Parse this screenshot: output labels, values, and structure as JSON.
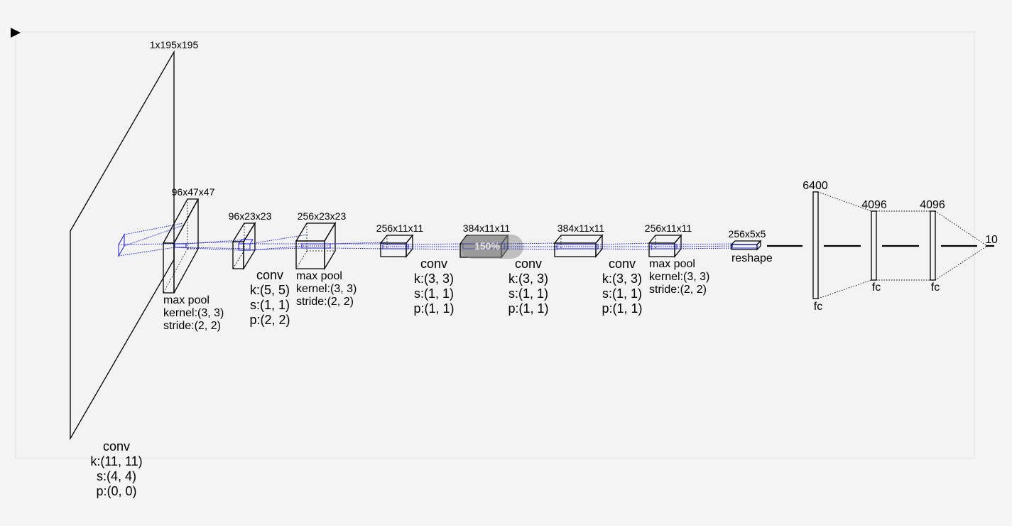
{
  "colors": {
    "background": "#f5f5f5",
    "panel": "#f3f3f3",
    "panel_border": "#e0e0e0",
    "receptive_field": "#1a1ad0",
    "highlight": "#a9a9a9"
  },
  "icons": {
    "play": "play-triangle-icon"
  },
  "input": {
    "shape": "1x195x195"
  },
  "layers": {
    "conv1": {
      "title": "conv",
      "kernel": "k:(11, 11)",
      "stride": "s:(4, 4)",
      "padding": "p:(0, 0)"
    },
    "out1": {
      "shape": "96x47x47"
    },
    "pool1": {
      "title": "max pool",
      "kernel": "kernel:(3, 3)",
      "stride": "stride:(2, 2)"
    },
    "out2": {
      "shape": "96x23x23"
    },
    "conv2": {
      "title": "conv",
      "kernel": "k:(5, 5)",
      "stride": "s:(1, 1)",
      "padding": "p:(2, 2)"
    },
    "out3": {
      "shape": "256x23x23"
    },
    "pool2": {
      "title": "max pool",
      "kernel": "kernel:(3, 3)",
      "stride": "stride:(2, 2)"
    },
    "out4": {
      "shape": "256x11x11"
    },
    "conv3": {
      "title": "conv",
      "kernel": "k:(3, 3)",
      "stride": "s:(1, 1)",
      "padding": "p:(1, 1)"
    },
    "out5": {
      "shape": "384x11x11",
      "overlay": "150%"
    },
    "conv4": {
      "title": "conv",
      "kernel": "k:(3, 3)",
      "stride": "s:(1, 1)",
      "padding": "p:(1, 1)"
    },
    "out6": {
      "shape": "384x11x11"
    },
    "conv5": {
      "title": "conv",
      "kernel": "k:(3, 3)",
      "stride": "s:(1, 1)",
      "padding": "p:(1, 1)"
    },
    "out7": {
      "shape": "256x11x11"
    },
    "pool3": {
      "title": "max pool",
      "kernel": "kernel:(3, 3)",
      "stride": "stride:(2, 2)"
    },
    "out8": {
      "shape": "256x5x5"
    },
    "reshape": {
      "title": "reshape"
    },
    "fc1": {
      "size": "6400",
      "label": "fc"
    },
    "fc2": {
      "size": "4096",
      "label": "fc"
    },
    "fc3": {
      "size": "4096",
      "label": "fc"
    },
    "output": {
      "size": "10"
    }
  }
}
